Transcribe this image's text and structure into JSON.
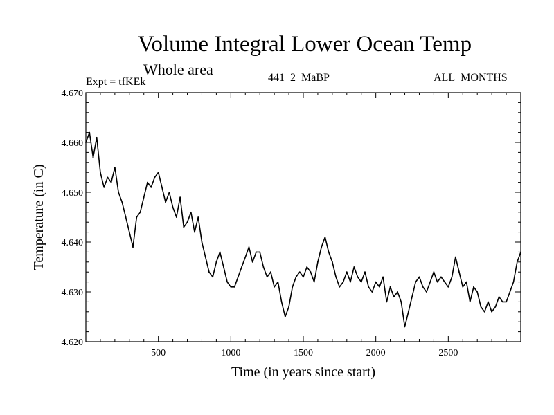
{
  "title": "Volume Integral Lower Ocean Temp",
  "subtitle": "Whole area",
  "expt_label": "Expt = tfKEk",
  "run_label": "441_2_MaBP",
  "season_label": "ALL_MONTHS",
  "chart_data": {
    "type": "line",
    "title": "Volume Integral Lower Ocean Temp",
    "subtitle": "Whole area",
    "xlabel": "Time (in years since start)",
    "ylabel": "Temperature (in C)",
    "xlim": [
      0,
      3000
    ],
    "ylim": [
      4.62,
      4.67
    ],
    "xticks": [
      500,
      1000,
      1500,
      2000,
      2500
    ],
    "yticks": [
      "4.620",
      "4.630",
      "4.640",
      "4.650",
      "4.660",
      "4.670"
    ],
    "grid": false,
    "series_color": "#000000",
    "series": [
      {
        "x": [
          0,
          25,
          50,
          75,
          100,
          125,
          150,
          175,
          200,
          225,
          250,
          275,
          300,
          325,
          350,
          375,
          400,
          425,
          450,
          475,
          500,
          525,
          550,
          575,
          600,
          625,
          650,
          675,
          700,
          725,
          750,
          775,
          800,
          825,
          850,
          875,
          900,
          925,
          950,
          975,
          1000,
          1025,
          1050,
          1075,
          1100,
          1125,
          1150,
          1175,
          1200,
          1225,
          1250,
          1275,
          1300,
          1325,
          1350,
          1375,
          1400,
          1425,
          1450,
          1475,
          1500,
          1525,
          1550,
          1575,
          1600,
          1625,
          1650,
          1675,
          1700,
          1725,
          1750,
          1775,
          1800,
          1825,
          1850,
          1875,
          1900,
          1925,
          1950,
          1975,
          2000,
          2025,
          2050,
          2075,
          2100,
          2125,
          2150,
          2175,
          2200,
          2225,
          2250,
          2275,
          2300,
          2325,
          2350,
          2375,
          2400,
          2425,
          2450,
          2475,
          2500,
          2525,
          2550,
          2575,
          2600,
          2625,
          2650,
          2675,
          2700,
          2725,
          2750,
          2775,
          2800,
          2825,
          2850,
          2875,
          2900,
          2925,
          2950,
          2975,
          3000
        ],
        "values": [
          4.66,
          4.662,
          4.657,
          4.661,
          4.654,
          4.651,
          4.653,
          4.652,
          4.655,
          4.65,
          4.648,
          4.645,
          4.642,
          4.639,
          4.645,
          4.646,
          4.649,
          4.652,
          4.651,
          4.653,
          4.654,
          4.651,
          4.648,
          4.65,
          4.647,
          4.645,
          4.649,
          4.643,
          4.644,
          4.646,
          4.642,
          4.645,
          4.64,
          4.637,
          4.634,
          4.633,
          4.636,
          4.638,
          4.635,
          4.632,
          4.631,
          4.631,
          4.633,
          4.635,
          4.637,
          4.639,
          4.636,
          4.638,
          4.638,
          4.635,
          4.633,
          4.634,
          4.631,
          4.632,
          4.628,
          4.625,
          4.627,
          4.631,
          4.633,
          4.634,
          4.633,
          4.635,
          4.634,
          4.632,
          4.636,
          4.639,
          4.641,
          4.638,
          4.636,
          4.633,
          4.631,
          4.632,
          4.634,
          4.632,
          4.635,
          4.633,
          4.632,
          4.634,
          4.631,
          4.63,
          4.632,
          4.631,
          4.633,
          4.628,
          4.631,
          4.629,
          4.63,
          4.628,
          4.623,
          4.626,
          4.629,
          4.632,
          4.633,
          4.631,
          4.63,
          4.632,
          4.634,
          4.632,
          4.633,
          4.632,
          4.631,
          4.633,
          4.637,
          4.634,
          4.631,
          4.632,
          4.628,
          4.631,
          4.63,
          4.627,
          4.626,
          4.628,
          4.626,
          4.627,
          4.629,
          4.628,
          4.628,
          4.63,
          4.632,
          4.636,
          4.638
        ]
      }
    ]
  }
}
